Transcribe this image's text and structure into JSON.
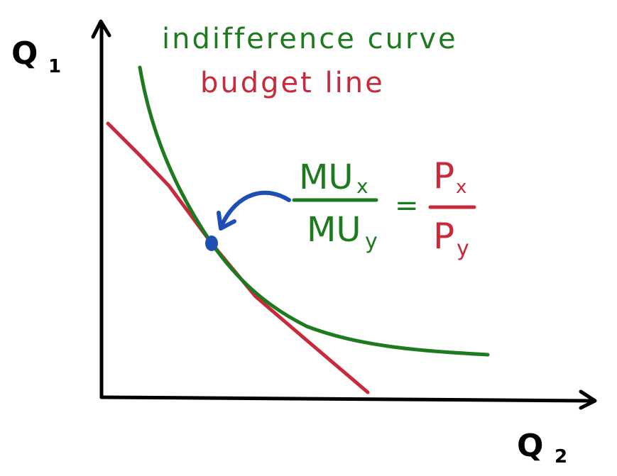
{
  "axes": {
    "y_label_main": "Q",
    "y_label_sub": "1",
    "x_label_main": "Q",
    "x_label_sub": "2"
  },
  "legend": {
    "indifference_label": "indifference curve",
    "budget_label": "budget line"
  },
  "equation": {
    "lhs_numerator_main": "MU",
    "lhs_numerator_sub": "x",
    "lhs_denominator_main": "MU",
    "lhs_denominator_sub": "y",
    "equals": "=",
    "rhs_numerator_main": "P",
    "rhs_numerator_sub": "x",
    "rhs_denominator_main": "P",
    "rhs_denominator_sub": "y"
  },
  "colors": {
    "axis": "#000000",
    "indifference": "#1e7a1e",
    "budget": "#c8293b",
    "tangency": "#1f4fb5"
  }
}
